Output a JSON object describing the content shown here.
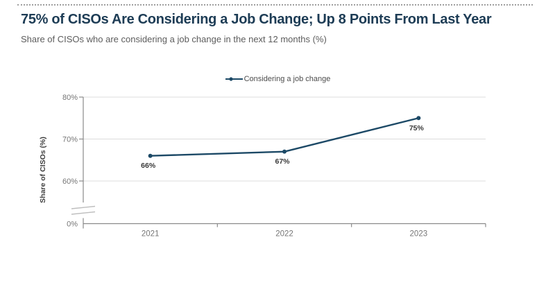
{
  "chart_data": {
    "type": "line",
    "title": "75% of CISOs Are Considering a Job Change; Up 8 Points From Last Year",
    "subtitle": "Share of CISOs who are considering a job change in the next 12 months (%)",
    "ylabel": "Share of CISOs (%)",
    "xlabel": "",
    "categories": [
      "2021",
      "2022",
      "2023"
    ],
    "series": [
      {
        "name": "Considering a job change",
        "values": [
          66,
          67,
          75
        ],
        "color": "#1c4966"
      }
    ],
    "data_labels": [
      "66%",
      "67%",
      "75%"
    ],
    "yticks": [
      {
        "value": 80,
        "label": "80%"
      },
      {
        "value": 70,
        "label": "70%"
      },
      {
        "value": 60,
        "label": "60%"
      },
      {
        "value": 0,
        "label": "0%"
      }
    ],
    "axis_break": true,
    "axis_break_note": "y-axis broken between 0% and 60%",
    "grid": "horizontal",
    "legend_position": "top-center",
    "colors": {
      "accent": "#1c4966",
      "title": "#1d3c55",
      "subtitle": "#5c5c5c",
      "grid": "#dcdcdc",
      "axis": "#8a8a8a",
      "break_mark": "#bdbdbd",
      "tick_label": "#757575",
      "data_label": "#383838"
    }
  }
}
